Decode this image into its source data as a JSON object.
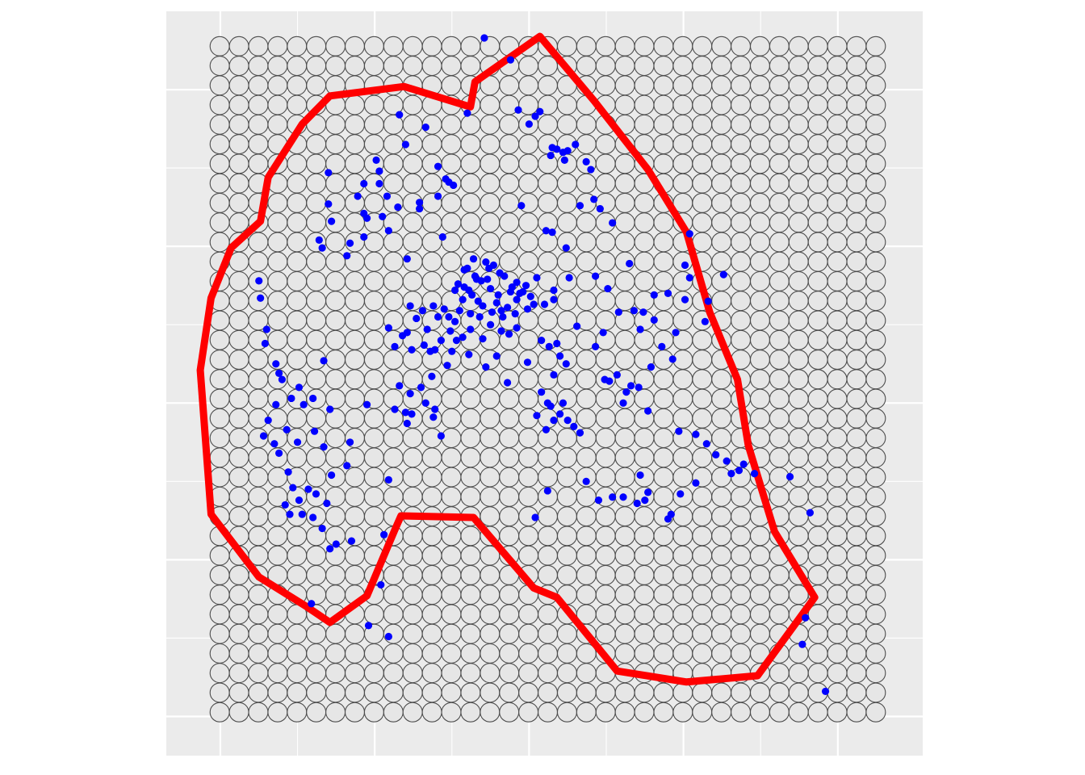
{
  "chart_data": {
    "type": "scatter",
    "title": "",
    "xlabel": "",
    "ylabel": "",
    "xlim": [
      -0.35,
      4.55
    ],
    "ylim": [
      -0.25,
      4.5
    ],
    "grid": true,
    "major_breaks_x": [
      0,
      1,
      2,
      3,
      4
    ],
    "major_breaks_y": [
      0,
      1,
      2,
      3,
      4
    ],
    "colors": {
      "panel_bg": "#ebebeb",
      "grid_line": "#ffffff",
      "hex_cell_fill": "#e6e6e6",
      "hex_cell_stroke": "#4d4d4d",
      "points": "#0000ff",
      "boundary": "#ff0000"
    },
    "hex_grid": {
      "columns": 35,
      "rows": 35,
      "x_start": -0.004,
      "y_start": 0.027,
      "x_step": 0.125,
      "y_step": 0.125
    },
    "boundary_polygon": [
      [
        -0.13,
        2.21
      ],
      [
        -0.06,
        2.67
      ],
      [
        0.07,
        2.99
      ],
      [
        0.26,
        3.16
      ],
      [
        0.31,
        3.44
      ],
      [
        0.53,
        3.78
      ],
      [
        0.71,
        3.96
      ],
      [
        1.19,
        4.02
      ],
      [
        1.62,
        3.89
      ],
      [
        1.65,
        4.05
      ],
      [
        2.07,
        4.34
      ],
      [
        2.42,
        3.93
      ],
      [
        2.77,
        3.49
      ],
      [
        3.02,
        3.09
      ],
      [
        3.17,
        2.58
      ],
      [
        3.35,
        2.15
      ],
      [
        3.42,
        1.73
      ],
      [
        3.59,
        1.18
      ],
      [
        3.85,
        0.76
      ],
      [
        3.48,
        0.26
      ],
      [
        3.02,
        0.22
      ],
      [
        2.57,
        0.29
      ],
      [
        2.18,
        0.76
      ],
      [
        2.03,
        0.82
      ],
      [
        1.64,
        1.27
      ],
      [
        1.17,
        1.28
      ],
      [
        1.13,
        1.19
      ],
      [
        0.95,
        0.77
      ],
      [
        0.71,
        0.6
      ],
      [
        0.56,
        0.7
      ],
      [
        0.25,
        0.89
      ],
      [
        -0.06,
        1.29
      ]
    ],
    "points": {
      "x": [
        1.71,
        1.16,
        1.2,
        1.33,
        1.41,
        1.46,
        1.51,
        1.29,
        1.6,
        0.7,
        0.7,
        1.01,
        1.03,
        1.08,
        0.93,
        1.15,
        1.09,
        1.21,
        0.82,
        0.84,
        0.93,
        0.72,
        0.66,
        0.93,
        1.05,
        1.03,
        0.64,
        0.89,
        0.95,
        1.41,
        1.29,
        1.44,
        1.48,
        1.88,
        1.93,
        2.04,
        2.0,
        2.07,
        2.14,
        2.15,
        2.22,
        2.18,
        2.23,
        2.25,
        2.3,
        2.37,
        2.4,
        2.33,
        2.46,
        2.54,
        2.42,
        2.15,
        1.95,
        2.11,
        2.24,
        2.16,
        2.26,
        2.43,
        2.65,
        2.51,
        2.81,
        2.81,
        3.01,
        3.16,
        2.9,
        3.04,
        3.04,
        3.01,
        3.26,
        3.14,
        2.72,
        2.95,
        0.25,
        0.26,
        0.3,
        0.29,
        0.36,
        0.4,
        0.46,
        0.38,
        0.51,
        0.6,
        0.54,
        0.61,
        0.67,
        0.72,
        0.82,
        0.84,
        0.71,
        0.67,
        0.42,
        0.45,
        0.51,
        0.53,
        0.6,
        0.66,
        0.71,
        0.75,
        0.85,
        1.06,
        0.95,
        1.16,
        1.13,
        1.33,
        1.37,
        1.32,
        1.48,
        1.52,
        1.58,
        1.64,
        1.66,
        1.72,
        1.77,
        1.84,
        1.92,
        1.98,
        2.05,
        1.54,
        1.61,
        1.69,
        1.75,
        1.8,
        1.88,
        1.94,
        2.01,
        1.57,
        1.63,
        1.7,
        1.79,
        1.86,
        1.92,
        1.55,
        1.62,
        1.68,
        1.76,
        1.83,
        1.91,
        1.99,
        1.58,
        1.65,
        1.73,
        1.81,
        1.89,
        1.6,
        1.67,
        1.74,
        1.82,
        1.96,
        2.03,
        2.1,
        2.16,
        1.23,
        1.31,
        1.38,
        1.45,
        1.49,
        1.41,
        1.34,
        1.27,
        1.21,
        1.09,
        1.13,
        1.18,
        1.24,
        1.36,
        1.43,
        1.5,
        1.57,
        1.62,
        1.7,
        1.75,
        1.82,
        1.87,
        1.92,
        2.08,
        2.13,
        2.18,
        2.2,
        2.24,
        2.16,
        1.99,
        1.86,
        1.79,
        1.72,
        1.61,
        1.53,
        1.47,
        1.39,
        1.2,
        1.23,
        2.08,
        2.12,
        2.16,
        2.2,
        2.14,
        2.22,
        2.29,
        2.11,
        2.05,
        2.25,
        2.33,
        2.52,
        2.61,
        2.66,
        2.77,
        2.71,
        2.63,
        2.57,
        2.49,
        2.43,
        2.31,
        2.48,
        2.58,
        2.68,
        2.74,
        2.79,
        2.86,
        2.93,
        2.97,
        3.08,
        3.15,
        3.21,
        3.28,
        3.31,
        3.36,
        3.39,
        3.46,
        3.69,
        3.82,
        2.9,
        2.75,
        2.7,
        2.98,
        3.08,
        2.54,
        2.72,
        2.92,
        2.77,
        0.59,
        0.96,
        1.09,
        1.04,
        3.79,
        3.77,
        3.92,
        1.24,
        1.3,
        1.39,
        1.52,
        1.09,
        0.28,
        0.35,
        0.38,
        0.44,
        0.47,
        0.57,
        0.62,
        0.69,
        0.31,
        0.36,
        0.43,
        0.5,
        2.04,
        2.12,
        1.43,
        2.37,
        2.45,
        2.61,
        1.38,
        1.21
      ],
      "y": [
        4.33,
        3.84,
        3.65,
        3.76,
        3.51,
        3.43,
        3.39,
        3.24,
        3.85,
        3.47,
        3.27,
        3.55,
        3.48,
        3.32,
        3.4,
        3.25,
        3.1,
        2.92,
        2.94,
        3.02,
        3.21,
        3.16,
        2.99,
        3.06,
        3.19,
        3.4,
        3.04,
        3.32,
        3.18,
        3.32,
        3.28,
        3.06,
        3.41,
        4.19,
        3.87,
        3.83,
        3.78,
        3.86,
        3.58,
        3.63,
        3.6,
        3.62,
        3.55,
        3.61,
        3.65,
        3.54,
        3.49,
        3.26,
        3.24,
        3.15,
        3.3,
        3.09,
        3.26,
        3.1,
        2.99,
        2.66,
        2.8,
        2.81,
        2.89,
        2.73,
        2.69,
        2.53,
        2.66,
        2.65,
        2.7,
        2.8,
        3.08,
        2.88,
        2.82,
        2.52,
        2.47,
        2.45,
        2.78,
        2.67,
        2.47,
        2.38,
        2.25,
        2.15,
        2.03,
        2.19,
        2.1,
        2.03,
        1.99,
        1.82,
        1.72,
        1.54,
        1.6,
        1.75,
        1.96,
        2.27,
        1.35,
        1.29,
        1.38,
        1.29,
        1.27,
        1.2,
        1.07,
        1.1,
        1.12,
        1.16,
        1.99,
        2.11,
        1.96,
        2.0,
        2.17,
        2.37,
        2.55,
        2.72,
        2.85,
        2.92,
        2.79,
        2.9,
        2.88,
        2.81,
        2.77,
        2.75,
        2.8,
        2.76,
        2.72,
        2.78,
        2.73,
        2.69,
        2.71,
        2.7,
        2.68,
        2.66,
        2.69,
        2.62,
        2.64,
        2.61,
        2.66,
        2.59,
        2.57,
        2.55,
        2.58,
        2.55,
        2.57,
        2.6,
        2.74,
        2.81,
        2.79,
        2.83,
        2.74,
        2.86,
        2.65,
        2.86,
        2.59,
        2.71,
        2.63,
        2.63,
        2.72,
        2.62,
        2.59,
        2.62,
        2.6,
        2.46,
        2.55,
        2.47,
        2.54,
        2.45,
        2.48,
        2.36,
        2.43,
        2.34,
        2.33,
        2.4,
        2.33,
        2.42,
        2.47,
        2.41,
        2.5,
        2.46,
        2.44,
        2.48,
        2.4,
        2.36,
        2.38,
        2.3,
        2.25,
        2.18,
        2.26,
        2.13,
        2.3,
        2.23,
        2.31,
        2.4,
        2.24,
        2.34,
        1.94,
        2.06,
        2.07,
        2.0,
        1.89,
        1.93,
        1.98,
        2.0,
        1.85,
        1.83,
        1.92,
        1.89,
        1.81,
        2.14,
        2.0,
        2.11,
        1.95,
        2.1,
        2.07,
        2.18,
        2.15,
        2.36,
        2.49,
        2.45,
        2.58,
        2.59,
        2.58,
        2.23,
        2.36,
        2.28,
        1.82,
        1.8,
        1.74,
        1.67,
        1.63,
        1.55,
        1.57,
        1.61,
        1.55,
        1.53,
        1.3,
        1.26,
        1.38,
        1.36,
        1.42,
        1.49,
        1.4,
        1.54,
        1.29,
        1.43,
        0.72,
        0.58,
        0.51,
        0.84,
        0.63,
        0.46,
        0.16,
        1.93,
        2.1,
        1.96,
        2.52,
        1.51,
        1.79,
        1.74,
        1.68,
        1.56,
        1.46,
        1.45,
        1.42,
        1.36,
        1.89,
        1.99,
        1.83,
        1.75,
        1.27,
        1.44,
        1.79,
        1.5,
        1.38,
        1.4,
        1.91,
        1.87
      ]
    }
  }
}
